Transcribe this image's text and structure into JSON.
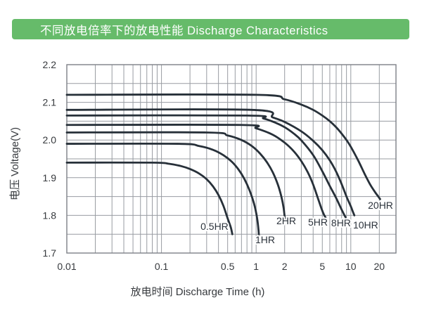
{
  "banner": {
    "title": "不同放电倍率下的放电性能 Discharge Characteristics",
    "bg_color": "#66bb6a",
    "text_color": "#ffffff"
  },
  "chart_data": {
    "type": "line",
    "title": "不同放电倍率下的放电性能 Discharge Characteristics",
    "xlabel": "放电时间  Discharge Time (h)",
    "ylabel": "电压  Voltage(V)",
    "x_scale": "log",
    "xlim": [
      0.01,
      30
    ],
    "ylim": [
      1.7,
      2.2
    ],
    "grid": {
      "on": true,
      "y_step": 0.05,
      "x_log_minors": true,
      "color": "#989ca2",
      "border_color": "#7d8187"
    },
    "line_color": "#273039",
    "line_width": 2.8,
    "x_ticks": [
      {
        "value": 0.01,
        "label": "0.01"
      },
      {
        "value": 0.1,
        "label": "0.1"
      },
      {
        "value": 0.5,
        "label": "0.5"
      },
      {
        "value": 1,
        "label": "1"
      },
      {
        "value": 2,
        "label": "2"
      },
      {
        "value": 5,
        "label": "5"
      },
      {
        "value": 10,
        "label": "10"
      },
      {
        "value": 20,
        "label": "20"
      }
    ],
    "y_ticks": [
      {
        "value": 2.2,
        "label": "2.2"
      },
      {
        "value": 2.1,
        "label": "2.1"
      },
      {
        "value": 2.0,
        "label": "2.0"
      },
      {
        "value": 1.9,
        "label": "1.9"
      },
      {
        "value": 1.8,
        "label": "1.8"
      },
      {
        "value": 1.7,
        "label": "1.7"
      }
    ],
    "series": [
      {
        "name": "0.5HR",
        "label": "0.5HR",
        "label_at": [
          0.363,
          1.771
        ],
        "points": [
          [
            0.01,
            1.94
          ],
          [
            0.08,
            1.94
          ],
          [
            0.12,
            1.937
          ],
          [
            0.16,
            1.931
          ],
          [
            0.2,
            1.923
          ],
          [
            0.25,
            1.911
          ],
          [
            0.3,
            1.896
          ],
          [
            0.35,
            1.877
          ],
          [
            0.4,
            1.854
          ],
          [
            0.45,
            1.826
          ],
          [
            0.5,
            1.792
          ],
          [
            0.54,
            1.768
          ],
          [
            0.56,
            1.75
          ]
        ]
      },
      {
        "name": "1HR",
        "label": "1HR",
        "label_at": [
          1.245,
          1.735
        ],
        "points": [
          [
            0.01,
            1.99
          ],
          [
            0.15,
            1.99
          ],
          [
            0.25,
            1.984
          ],
          [
            0.35,
            1.974
          ],
          [
            0.45,
            1.96
          ],
          [
            0.55,
            1.943
          ],
          [
            0.65,
            1.922
          ],
          [
            0.75,
            1.897
          ],
          [
            0.85,
            1.867
          ],
          [
            0.95,
            1.831
          ],
          [
            1.02,
            1.795
          ],
          [
            1.06,
            1.76
          ],
          [
            1.08,
            1.725
          ]
        ]
      },
      {
        "name": "2HR",
        "label": "2HR",
        "label_at": [
          2.08,
          1.786
        ],
        "points": [
          [
            0.01,
            2.02
          ],
          [
            0.3,
            2.02
          ],
          [
            0.5,
            2.012
          ],
          [
            0.7,
            2.0
          ],
          [
            0.9,
            1.984
          ],
          [
            1.1,
            1.964
          ],
          [
            1.3,
            1.941
          ],
          [
            1.5,
            1.914
          ],
          [
            1.7,
            1.881
          ],
          [
            1.85,
            1.849
          ],
          [
            1.95,
            1.82
          ],
          [
            2.02,
            1.786
          ]
        ]
      },
      {
        "name": "5HR",
        "label": "5HR",
        "label_at": [
          4.49,
          1.782
        ],
        "points": [
          [
            0.01,
            2.04
          ],
          [
            0.7,
            2.04
          ],
          [
            1.0,
            2.031
          ],
          [
            1.5,
            2.014
          ],
          [
            2,
            1.993
          ],
          [
            2.5,
            1.97
          ],
          [
            3,
            1.944
          ],
          [
            3.5,
            1.915
          ],
          [
            4,
            1.882
          ],
          [
            4.5,
            1.845
          ],
          [
            4.9,
            1.818
          ],
          [
            5.2,
            1.802
          ],
          [
            5.4,
            1.795
          ]
        ]
      },
      {
        "name": "8HR",
        "label": "8HR",
        "label_at": [
          7.89,
          1.78
        ],
        "points": [
          [
            0.01,
            2.065
          ],
          [
            0.8,
            2.065
          ],
          [
            1.2,
            2.057
          ],
          [
            1.6,
            2.046
          ],
          [
            2,
            2.034
          ],
          [
            2.5,
            2.017
          ],
          [
            3,
            1.999
          ],
          [
            4,
            1.96
          ],
          [
            5,
            1.917
          ],
          [
            6,
            1.878
          ],
          [
            7,
            1.846
          ],
          [
            7.9,
            1.818
          ],
          [
            8.5,
            1.802
          ],
          [
            8.8,
            1.795
          ]
        ]
      },
      {
        "name": "10HR",
        "label": "10HR",
        "label_at": [
          14.35,
          1.775
        ],
        "points": [
          [
            0.01,
            2.08
          ],
          [
            0.9,
            2.08
          ],
          [
            1.5,
            2.06
          ],
          [
            2,
            2.048
          ],
          [
            3,
            2.023
          ],
          [
            4,
            1.998
          ],
          [
            5,
            1.973
          ],
          [
            6,
            1.946
          ],
          [
            7,
            1.916
          ],
          [
            8,
            1.883
          ],
          [
            9,
            1.85
          ],
          [
            10,
            1.824
          ],
          [
            10.5,
            1.81
          ],
          [
            10.9,
            1.8
          ]
        ]
      },
      {
        "name": "20HR",
        "label": "20HR",
        "label_at": [
          20.6,
          1.827
        ],
        "points": [
          [
            0.01,
            2.12
          ],
          [
            1,
            2.12
          ],
          [
            2,
            2.108
          ],
          [
            3,
            2.094
          ],
          [
            4,
            2.08
          ],
          [
            5,
            2.065
          ],
          [
            6,
            2.05
          ],
          [
            7,
            2.034
          ],
          [
            8,
            2.017
          ],
          [
            9,
            2.0
          ],
          [
            10,
            1.982
          ],
          [
            12,
            1.945
          ],
          [
            14,
            1.91
          ],
          [
            16,
            1.882
          ],
          [
            18,
            1.862
          ],
          [
            19.5,
            1.85
          ],
          [
            20.4,
            1.843
          ]
        ]
      }
    ],
    "legend": "none"
  }
}
